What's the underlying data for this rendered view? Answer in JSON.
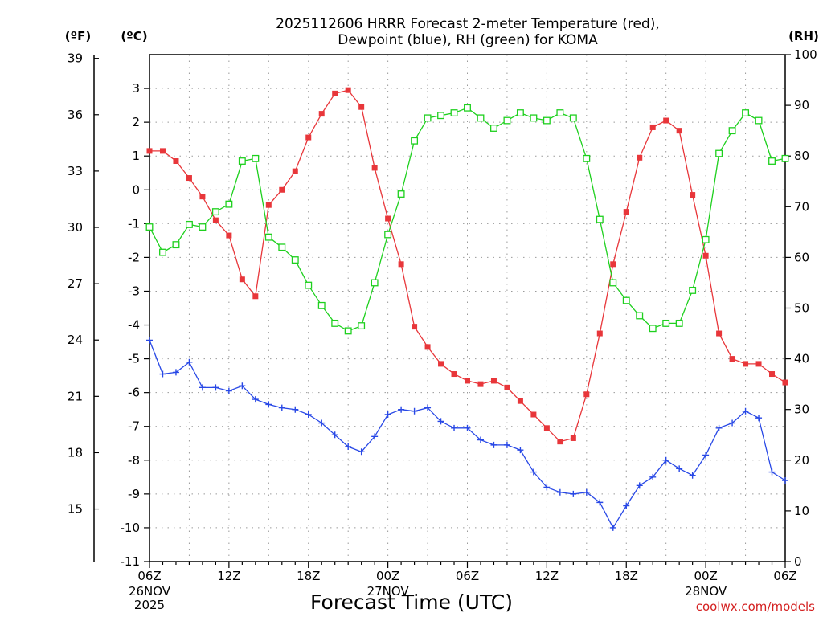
{
  "chart_data": {
    "type": "line",
    "title_lines": [
      "2025112606 HRRR Forecast 2-meter Temperature (red),",
      "Dewpoint (blue), RH (green) for KOMA"
    ],
    "xlabel": "Forecast Time (UTC)",
    "credit": "coolwx.com/models",
    "credit_color": "#d42020",
    "units": {
      "fahrenheit": "(ºF)",
      "celsius": "(ºC)",
      "rh": "(RH)"
    },
    "x_hours_range": [
      0,
      48
    ],
    "x_ticks": [
      {
        "hour": 0,
        "label": "06Z",
        "sub": [
          "26NOV",
          "2025"
        ]
      },
      {
        "hour": 6,
        "label": "12Z",
        "sub": []
      },
      {
        "hour": 12,
        "label": "18Z",
        "sub": []
      },
      {
        "hour": 18,
        "label": "00Z",
        "sub": [
          "27NOV"
        ]
      },
      {
        "hour": 24,
        "label": "06Z",
        "sub": []
      },
      {
        "hour": 30,
        "label": "12Z",
        "sub": []
      },
      {
        "hour": 36,
        "label": "18Z",
        "sub": []
      },
      {
        "hour": 42,
        "label": "00Z",
        "sub": [
          "28NOV"
        ]
      },
      {
        "hour": 48,
        "label": "06Z",
        "sub": []
      }
    ],
    "y_celsius": {
      "range": [
        -11,
        4
      ],
      "ticks": [
        -11,
        -10,
        -9,
        -8,
        -7,
        -6,
        -5,
        -4,
        -3,
        -2,
        -1,
        0,
        1,
        2,
        3
      ]
    },
    "y_fahrenheit": {
      "ticks": [
        15,
        18,
        21,
        24,
        27,
        30,
        33,
        36,
        39
      ]
    },
    "y_rh": {
      "range": [
        0,
        100
      ],
      "ticks": [
        0,
        10,
        20,
        30,
        40,
        50,
        60,
        70,
        80,
        90,
        100
      ]
    },
    "series": [
      {
        "name": "Temperature",
        "unit": "C",
        "color": "#e8363a",
        "marker": "filled-square",
        "values": [
          1.15,
          1.15,
          0.85,
          0.35,
          -0.2,
          -0.9,
          -1.35,
          -2.65,
          -3.15,
          -0.45,
          0.0,
          0.55,
          1.55,
          2.25,
          2.85,
          2.95,
          2.45,
          0.65,
          -0.85,
          -2.2,
          -4.05,
          -4.65,
          -5.15,
          -5.45,
          -5.65,
          -5.75,
          -5.65,
          -5.85,
          -6.25,
          -6.65,
          -7.05,
          -7.45,
          -7.35,
          -6.05,
          -4.25,
          -2.2,
          -0.65,
          0.95,
          1.85,
          2.05,
          1.75,
          -0.15,
          -1.95,
          -4.25,
          -5.0,
          -5.15,
          -5.15,
          -5.45,
          -5.7
        ]
      },
      {
        "name": "Dewpoint",
        "unit": "C",
        "color": "#2848e6",
        "marker": "plus",
        "values": [
          -4.45,
          -5.45,
          -5.4,
          -5.1,
          -5.85,
          -5.85,
          -5.95,
          -5.8,
          -6.2,
          -6.35,
          -6.45,
          -6.5,
          -6.65,
          -6.9,
          -7.25,
          -7.6,
          -7.75,
          -7.3,
          -6.65,
          -6.5,
          -6.55,
          -6.45,
          -6.85,
          -7.05,
          -7.05,
          -7.4,
          -7.55,
          -7.55,
          -7.7,
          -8.35,
          -8.8,
          -8.95,
          -9.0,
          -8.95,
          -9.25,
          -10.0,
          -9.35,
          -8.75,
          -8.5,
          -8.0,
          -8.25,
          -8.45,
          -7.85,
          -7.05,
          -6.9,
          -6.55,
          -6.75,
          -8.35,
          -8.6
        ]
      },
      {
        "name": "Relative Humidity",
        "unit": "%",
        "color": "#1ed01e",
        "marker": "open-square",
        "values": [
          66,
          61,
          62.5,
          66.5,
          66,
          69,
          70.5,
          79,
          79.5,
          64,
          62,
          59.5,
          54.5,
          50.5,
          47,
          45.5,
          46.5,
          55,
          64.5,
          72.5,
          83,
          87.5,
          88,
          88.5,
          89.5,
          87.5,
          85.5,
          87,
          88.5,
          87.5,
          87,
          88.5,
          87.5,
          79.5,
          67.5,
          55,
          51.5,
          48.5,
          46,
          47,
          47,
          53.5,
          63.5,
          80.5,
          85,
          88.5,
          87,
          79,
          79.5
        ]
      }
    ]
  }
}
